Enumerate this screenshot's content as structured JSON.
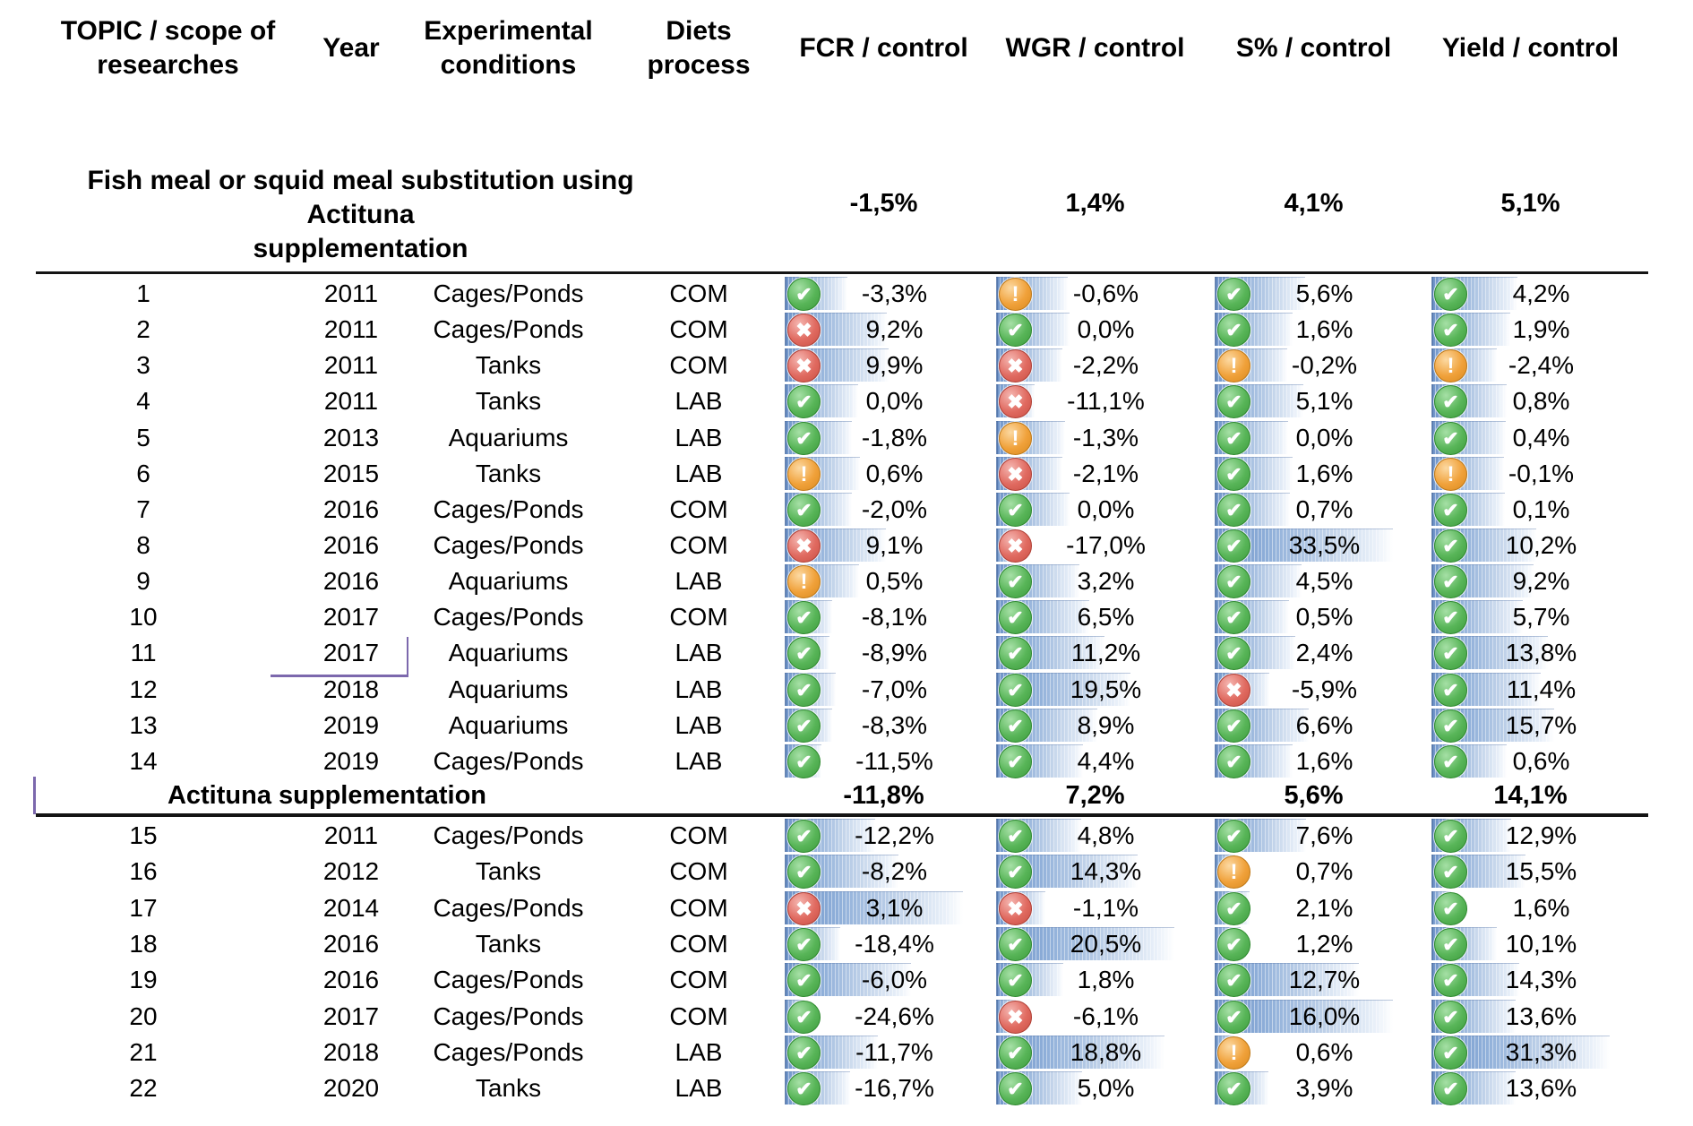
{
  "accent_colors": {
    "bar": "#638ec6",
    "icon_check": "#4caf50",
    "icon_cross": "#d9544f",
    "icon_warn": "#f0a13a",
    "selection_mark": "#7c68ad"
  },
  "chart_data": {
    "type": "table",
    "columns": [
      {
        "key": "topic",
        "label": "TOPIC / scope of\nresearches"
      },
      {
        "key": "year",
        "label": "Year"
      },
      {
        "key": "conditions",
        "label": "Experimental\nconditions"
      },
      {
        "key": "process",
        "label": "Diets\nprocess"
      },
      {
        "key": "fcr",
        "label": "FCR / control"
      },
      {
        "key": "wgr",
        "label": "WGR / control"
      },
      {
        "key": "s",
        "label": "S% / control"
      },
      {
        "key": "yield",
        "label": "Yield / control"
      }
    ],
    "icons": [
      "check",
      "cross",
      "warn"
    ],
    "groups": [
      {
        "title": "Fish meal or squid meal substitution using Actituna\nsupplementation",
        "summary": {
          "fcr": "-1,5%",
          "wgr": "1,4%",
          "s": "4,1%",
          "yield": "5,1%"
        },
        "bar_scaling": "all-metrics",
        "rows": [
          {
            "no": "1",
            "year": "2011",
            "conditions": "Cages/Ponds",
            "process": "COM",
            "metrics": {
              "fcr": {
                "icon": "check",
                "value": -3.3,
                "label": "-3,3%"
              },
              "wgr": {
                "icon": "warn",
                "value": -0.6,
                "label": "-0,6%"
              },
              "s": {
                "icon": "check",
                "value": 5.6,
                "label": "5,6%"
              },
              "yield": {
                "icon": "check",
                "value": 4.2,
                "label": "4,2%"
              }
            }
          },
          {
            "no": "2",
            "year": "2011",
            "conditions": "Cages/Ponds",
            "process": "COM",
            "metrics": {
              "fcr": {
                "icon": "cross",
                "value": 9.2,
                "label": "9,2%"
              },
              "wgr": {
                "icon": "check",
                "value": 0.0,
                "label": "0,0%"
              },
              "s": {
                "icon": "check",
                "value": 1.6,
                "label": "1,6%"
              },
              "yield": {
                "icon": "check",
                "value": 1.9,
                "label": "1,9%"
              }
            }
          },
          {
            "no": "3",
            "year": "2011",
            "conditions": "Tanks",
            "process": "COM",
            "metrics": {
              "fcr": {
                "icon": "cross",
                "value": 9.9,
                "label": "9,9%"
              },
              "wgr": {
                "icon": "cross",
                "value": -2.2,
                "label": "-2,2%"
              },
              "s": {
                "icon": "warn",
                "value": -0.2,
                "label": "-0,2%"
              },
              "yield": {
                "icon": "warn",
                "value": -2.4,
                "label": "-2,4%"
              }
            }
          },
          {
            "no": "4",
            "year": "2011",
            "conditions": "Tanks",
            "process": "LAB",
            "metrics": {
              "fcr": {
                "icon": "check",
                "value": 0.0,
                "label": "0,0%"
              },
              "wgr": {
                "icon": "cross",
                "value": -11.1,
                "label": "-11,1%"
              },
              "s": {
                "icon": "check",
                "value": 5.1,
                "label": "5,1%"
              },
              "yield": {
                "icon": "check",
                "value": 0.8,
                "label": "0,8%"
              }
            }
          },
          {
            "no": "5",
            "year": "2013",
            "conditions": "Aquariums",
            "process": "LAB",
            "metrics": {
              "fcr": {
                "icon": "check",
                "value": -1.8,
                "label": "-1,8%"
              },
              "wgr": {
                "icon": "warn",
                "value": -1.3,
                "label": "-1,3%"
              },
              "s": {
                "icon": "check",
                "value": 0.0,
                "label": "0,0%"
              },
              "yield": {
                "icon": "check",
                "value": 0.4,
                "label": "0,4%"
              }
            }
          },
          {
            "no": "6",
            "year": "2015",
            "conditions": "Tanks",
            "process": "LAB",
            "metrics": {
              "fcr": {
                "icon": "warn",
                "value": 0.6,
                "label": "0,6%"
              },
              "wgr": {
                "icon": "cross",
                "value": -2.1,
                "label": "-2,1%"
              },
              "s": {
                "icon": "check",
                "value": 1.6,
                "label": "1,6%"
              },
              "yield": {
                "icon": "warn",
                "value": -0.1,
                "label": "-0,1%"
              }
            }
          },
          {
            "no": "7",
            "year": "2016",
            "conditions": "Cages/Ponds",
            "process": "COM",
            "metrics": {
              "fcr": {
                "icon": "check",
                "value": -2.0,
                "label": "-2,0%"
              },
              "wgr": {
                "icon": "check",
                "value": 0.0,
                "label": "0,0%"
              },
              "s": {
                "icon": "check",
                "value": 0.7,
                "label": "0,7%"
              },
              "yield": {
                "icon": "check",
                "value": 0.1,
                "label": "0,1%"
              }
            }
          },
          {
            "no": "8",
            "year": "2016",
            "conditions": "Cages/Ponds",
            "process": "COM",
            "metrics": {
              "fcr": {
                "icon": "cross",
                "value": 9.1,
                "label": "9,1%"
              },
              "wgr": {
                "icon": "cross",
                "value": -17.0,
                "label": "-17,0%"
              },
              "s": {
                "icon": "check",
                "value": 33.5,
                "label": "33,5%"
              },
              "yield": {
                "icon": "check",
                "value": 10.2,
                "label": "10,2%"
              }
            }
          },
          {
            "no": "9",
            "year": "2016",
            "conditions": "Aquariums",
            "process": "LAB",
            "metrics": {
              "fcr": {
                "icon": "warn",
                "value": 0.5,
                "label": "0,5%"
              },
              "wgr": {
                "icon": "check",
                "value": 3.2,
                "label": "3,2%"
              },
              "s": {
                "icon": "check",
                "value": 4.5,
                "label": "4,5%"
              },
              "yield": {
                "icon": "check",
                "value": 9.2,
                "label": "9,2%"
              }
            }
          },
          {
            "no": "10",
            "year": "2017",
            "conditions": "Cages/Ponds",
            "process": "COM",
            "metrics": {
              "fcr": {
                "icon": "check",
                "value": -8.1,
                "label": "-8,1%"
              },
              "wgr": {
                "icon": "check",
                "value": 6.5,
                "label": "6,5%"
              },
              "s": {
                "icon": "check",
                "value": 0.5,
                "label": "0,5%"
              },
              "yield": {
                "icon": "check",
                "value": 5.7,
                "label": "5,7%"
              }
            }
          },
          {
            "no": "11",
            "year": "2017",
            "conditions": "Aquariums",
            "process": "LAB",
            "metrics": {
              "fcr": {
                "icon": "check",
                "value": -8.9,
                "label": "-8,9%"
              },
              "wgr": {
                "icon": "check",
                "value": 11.2,
                "label": "11,2%"
              },
              "s": {
                "icon": "check",
                "value": 2.4,
                "label": "2,4%"
              },
              "yield": {
                "icon": "check",
                "value": 13.8,
                "label": "13,8%"
              }
            }
          },
          {
            "no": "12",
            "year": "2018",
            "conditions": "Aquariums",
            "process": "LAB",
            "metrics": {
              "fcr": {
                "icon": "check",
                "value": -7.0,
                "label": "-7,0%"
              },
              "wgr": {
                "icon": "check",
                "value": 19.5,
                "label": "19,5%"
              },
              "s": {
                "icon": "cross",
                "value": -5.9,
                "label": "-5,9%"
              },
              "yield": {
                "icon": "check",
                "value": 11.4,
                "label": "11,4%"
              }
            }
          },
          {
            "no": "13",
            "year": "2019",
            "conditions": "Aquariums",
            "process": "LAB",
            "metrics": {
              "fcr": {
                "icon": "check",
                "value": -8.3,
                "label": "-8,3%"
              },
              "wgr": {
                "icon": "check",
                "value": 8.9,
                "label": "8,9%"
              },
              "s": {
                "icon": "check",
                "value": 6.6,
                "label": "6,6%"
              },
              "yield": {
                "icon": "check",
                "value": 15.7,
                "label": "15,7%"
              }
            }
          },
          {
            "no": "14",
            "year": "2019",
            "conditions": "Cages/Ponds",
            "process": "LAB",
            "metrics": {
              "fcr": {
                "icon": "check",
                "value": -11.5,
                "label": "-11,5%"
              },
              "wgr": {
                "icon": "check",
                "value": 4.4,
                "label": "4,4%"
              },
              "s": {
                "icon": "check",
                "value": 1.6,
                "label": "1,6%"
              },
              "yield": {
                "icon": "check",
                "value": 0.6,
                "label": "0,6%"
              }
            }
          }
        ]
      },
      {
        "title": "Actituna supplementation",
        "summary": {
          "fcr": "-11,8%",
          "wgr": "7,2%",
          "s": "5,6%",
          "yield": "14,1%"
        },
        "bar_scaling": "per-metric",
        "rows": [
          {
            "no": "15",
            "year": "2011",
            "conditions": "Cages/Ponds",
            "process": "COM",
            "metrics": {
              "fcr": {
                "icon": "check",
                "value": -12.2,
                "label": "-12,2%"
              },
              "wgr": {
                "icon": "check",
                "value": 4.8,
                "label": "4,8%"
              },
              "s": {
                "icon": "check",
                "value": 7.6,
                "label": "7,6%"
              },
              "yield": {
                "icon": "check",
                "value": 12.9,
                "label": "12,9%"
              }
            }
          },
          {
            "no": "16",
            "year": "2012",
            "conditions": "Tanks",
            "process": "COM",
            "metrics": {
              "fcr": {
                "icon": "check",
                "value": -8.2,
                "label": "-8,2%"
              },
              "wgr": {
                "icon": "check",
                "value": 14.3,
                "label": "14,3%"
              },
              "s": {
                "icon": "warn",
                "value": 0.7,
                "label": "0,7%"
              },
              "yield": {
                "icon": "check",
                "value": 15.5,
                "label": "15,5%"
              }
            }
          },
          {
            "no": "17",
            "year": "2014",
            "conditions": "Cages/Ponds",
            "process": "COM",
            "metrics": {
              "fcr": {
                "icon": "cross",
                "value": 3.1,
                "label": "3,1%"
              },
              "wgr": {
                "icon": "cross",
                "value": -1.1,
                "label": "-1,1%"
              },
              "s": {
                "icon": "check",
                "value": 2.1,
                "label": "2,1%"
              },
              "yield": {
                "icon": "check",
                "value": 1.6,
                "label": "1,6%"
              }
            }
          },
          {
            "no": "18",
            "year": "2016",
            "conditions": "Tanks",
            "process": "COM",
            "metrics": {
              "fcr": {
                "icon": "check",
                "value": -18.4,
                "label": "-18,4%"
              },
              "wgr": {
                "icon": "check",
                "value": 20.5,
                "label": "20,5%"
              },
              "s": {
                "icon": "check",
                "value": 1.2,
                "label": "1,2%"
              },
              "yield": {
                "icon": "check",
                "value": 10.1,
                "label": "10,1%"
              }
            }
          },
          {
            "no": "19",
            "year": "2016",
            "conditions": "Cages/Ponds",
            "process": "COM",
            "metrics": {
              "fcr": {
                "icon": "check",
                "value": -6.0,
                "label": "-6,0%"
              },
              "wgr": {
                "icon": "check",
                "value": 1.8,
                "label": "1,8%"
              },
              "s": {
                "icon": "check",
                "value": 12.7,
                "label": "12,7%"
              },
              "yield": {
                "icon": "check",
                "value": 14.3,
                "label": "14,3%"
              }
            }
          },
          {
            "no": "20",
            "year": "2017",
            "conditions": "Cages/Ponds",
            "process": "COM",
            "metrics": {
              "fcr": {
                "icon": "check",
                "value": -24.6,
                "label": "-24,6%"
              },
              "wgr": {
                "icon": "cross",
                "value": -6.1,
                "label": "-6,1%"
              },
              "s": {
                "icon": "check",
                "value": 16.0,
                "label": "16,0%"
              },
              "yield": {
                "icon": "check",
                "value": 13.6,
                "label": "13,6%"
              }
            }
          },
          {
            "no": "21",
            "year": "2018",
            "conditions": "Cages/Ponds",
            "process": "LAB",
            "metrics": {
              "fcr": {
                "icon": "check",
                "value": -11.7,
                "label": "-11,7%"
              },
              "wgr": {
                "icon": "check",
                "value": 18.8,
                "label": "18,8%"
              },
              "s": {
                "icon": "warn",
                "value": 0.6,
                "label": "0,6%"
              },
              "yield": {
                "icon": "check",
                "value": 31.3,
                "label": "31,3%"
              }
            }
          },
          {
            "no": "22",
            "year": "2020",
            "conditions": "Tanks",
            "process": "LAB",
            "metrics": {
              "fcr": {
                "icon": "check",
                "value": -16.7,
                "label": "-16,7%"
              },
              "wgr": {
                "icon": "check",
                "value": 5.0,
                "label": "5,0%"
              },
              "s": {
                "icon": "check",
                "value": 3.9,
                "label": "3,9%"
              },
              "yield": {
                "icon": "check",
                "value": 13.6,
                "label": "13,6%"
              }
            }
          }
        ]
      }
    ]
  }
}
